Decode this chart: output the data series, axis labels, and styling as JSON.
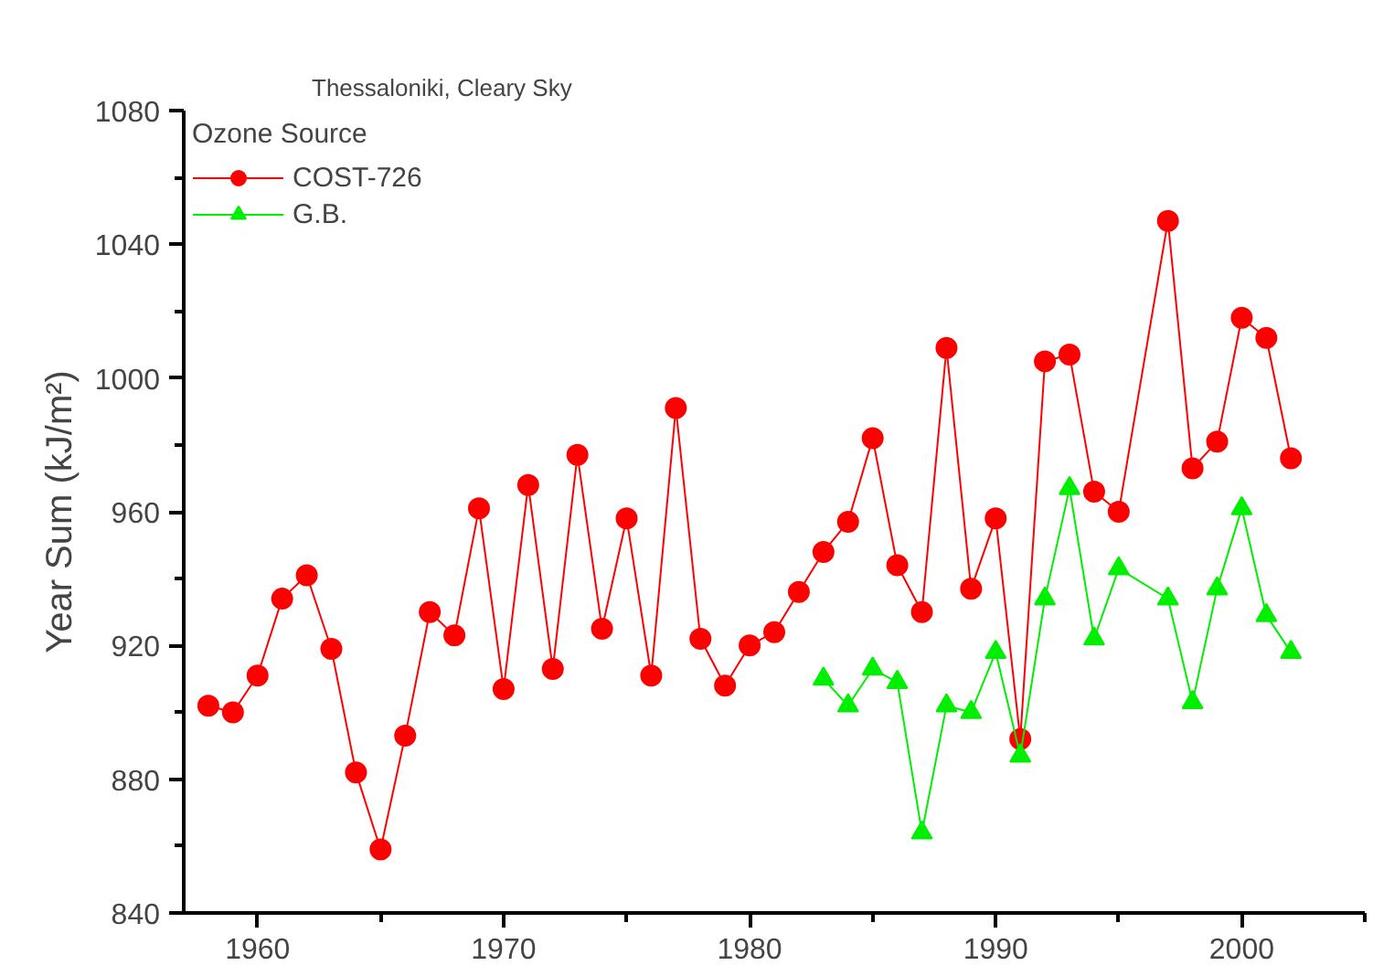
{
  "chart_data": {
    "type": "line",
    "title": "Thessaloniki, Cleary Sky",
    "legend_title": "Ozone Source",
    "ylabel": "Year Sum (kJ/m²)",
    "xlim": [
      1957,
      2005
    ],
    "xticks": [
      1960,
      1970,
      1980,
      1990,
      2000
    ],
    "ylim": [
      840,
      1080
    ],
    "yticks": [
      840,
      880,
      920,
      960,
      1000,
      1040,
      1080
    ],
    "grid": false,
    "legend": "top left",
    "line_style": "solid",
    "series": [
      {
        "name": "COST-726",
        "color": "#ff0000",
        "marker": "circle",
        "x": [
          1958,
          1959,
          1960,
          1961,
          1962,
          1963,
          1964,
          1965,
          1966,
          1967,
          1968,
          1969,
          1970,
          1971,
          1972,
          1973,
          1974,
          1975,
          1976,
          1977,
          1978,
          1979,
          1980,
          1981,
          1982,
          1983,
          1984,
          1985,
          1986,
          1987,
          1988,
          1989,
          1990,
          1991,
          1992,
          1993,
          1994,
          1995,
          1997,
          1998,
          1999,
          2000,
          2001,
          2002
        ],
        "values": [
          902,
          900,
          911,
          934,
          941,
          919,
          882,
          859,
          893,
          930,
          923,
          961,
          907,
          968,
          913,
          977,
          925,
          958,
          911,
          991,
          922,
          908,
          920,
          924,
          936,
          948,
          957,
          982,
          944,
          930,
          1009,
          937,
          958,
          892,
          1005,
          1007,
          966,
          960,
          1047,
          973,
          981,
          1018,
          1012,
          976
        ]
      },
      {
        "name": "G.B.",
        "color": "#00ee00",
        "marker": "triangle",
        "x": [
          1983,
          1984,
          1985,
          1986,
          1987,
          1988,
          1989,
          1990,
          1991,
          1992,
          1993,
          1994,
          1995,
          1997,
          1998,
          1999,
          2000,
          2001,
          2002
        ],
        "values": [
          910,
          902,
          913,
          909,
          864,
          902,
          900,
          918,
          887,
          934,
          967,
          922,
          943,
          934,
          903,
          937,
          961,
          929,
          918
        ]
      }
    ]
  }
}
